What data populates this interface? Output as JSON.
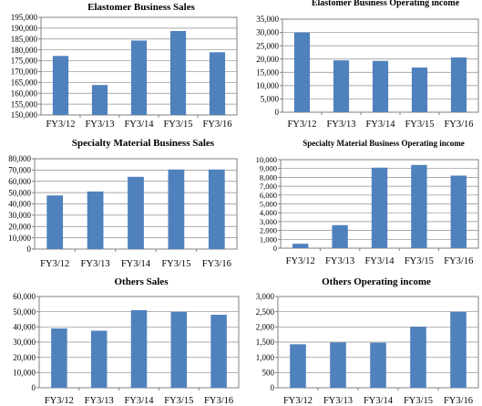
{
  "colors": {
    "bar": "#4f81bd",
    "grid": "#8c8c8c",
    "axis": "#808080"
  },
  "chart_data": [
    {
      "type": "bar",
      "title": "Elastomer Business Sales",
      "categories": [
        "FY3/12",
        "FY3/13",
        "FY3/14",
        "FY3/15",
        "FY3/16"
      ],
      "values": [
        177200,
        163800,
        184300,
        188700,
        178900
      ],
      "ylim": [
        150000,
        195000
      ],
      "yticks": [
        150000,
        155000,
        160000,
        165000,
        170000,
        175000,
        180000,
        185000,
        190000,
        195000
      ],
      "ytick_labels": [
        "150,000",
        "155,000",
        "160,000",
        "165,000",
        "170,000",
        "175,000",
        "180,000",
        "185,000",
        "190,000",
        "195,000"
      ],
      "grid": true
    },
    {
      "type": "bar",
      "title": "Elastomer Business Operating income",
      "categories": [
        "FY3/12",
        "FY3/13",
        "FY3/14",
        "FY3/15",
        "FY3/16"
      ],
      "values": [
        30000,
        19500,
        19300,
        16800,
        20600
      ],
      "ylim": [
        0,
        35000
      ],
      "yticks": [
        0,
        5000,
        10000,
        15000,
        20000,
        25000,
        30000,
        35000
      ],
      "ytick_labels": [
        "0",
        "5,000",
        "10,000",
        "15,000",
        "20,000",
        "25,000",
        "30,000",
        "35,000"
      ],
      "grid": true
    },
    {
      "type": "bar",
      "title": "Specialty Material Business Sales",
      "categories": [
        "FY3/12",
        "FY3/13",
        "FY3/14",
        "FY3/15",
        "FY3/16"
      ],
      "values": [
        47500,
        51000,
        64000,
        70500,
        70500
      ],
      "ylim": [
        0,
        80000
      ],
      "yticks": [
        0,
        10000,
        20000,
        30000,
        40000,
        50000,
        60000,
        70000,
        80000
      ],
      "ytick_labels": [
        "0",
        "10,000",
        "20,000",
        "30,000",
        "40,000",
        "50,000",
        "60,000",
        "70,000",
        "80,000"
      ],
      "grid": true
    },
    {
      "type": "bar",
      "title": "Specialty Material Business Operating income",
      "categories": [
        "FY3/12",
        "FY3/13",
        "FY3/14",
        "FY3/15",
        "FY3/16"
      ],
      "values": [
        500,
        2600,
        9100,
        9400,
        8200
      ],
      "ylim": [
        0,
        10000
      ],
      "yticks": [
        0,
        1000,
        2000,
        3000,
        4000,
        5000,
        6000,
        7000,
        8000,
        9000,
        10000
      ],
      "ytick_labels": [
        "0",
        "1,000",
        "2,000",
        "3,000",
        "4,000",
        "5,000",
        "6,000",
        "7,000",
        "8,000",
        "9,000",
        "10,000"
      ],
      "grid": true
    },
    {
      "type": "bar",
      "title": "Others Sales",
      "categories": [
        "FY3/12",
        "FY3/13",
        "FY3/14",
        "FY3/15",
        "FY3/16"
      ],
      "values": [
        39000,
        37500,
        51000,
        50000,
        48000
      ],
      "ylim": [
        0,
        60000
      ],
      "yticks": [
        0,
        10000,
        20000,
        30000,
        40000,
        50000,
        60000
      ],
      "ytick_labels": [
        "0",
        "10,000",
        "20,000",
        "30,000",
        "40,000",
        "50,000",
        "60,000"
      ],
      "grid": true
    },
    {
      "type": "bar",
      "title": "Others Operating income",
      "categories": [
        "FY3/12",
        "FY3/13",
        "FY3/14",
        "FY3/15",
        "FY3/16"
      ],
      "values": [
        1430,
        1490,
        1480,
        2000,
        2500
      ],
      "ylim": [
        0,
        3000
      ],
      "yticks": [
        0,
        500,
        1000,
        1500,
        2000,
        2500,
        3000
      ],
      "ytick_labels": [
        "0",
        "500",
        "1,000",
        "1,500",
        "2,000",
        "2,500",
        "3,000"
      ],
      "grid": true
    }
  ]
}
